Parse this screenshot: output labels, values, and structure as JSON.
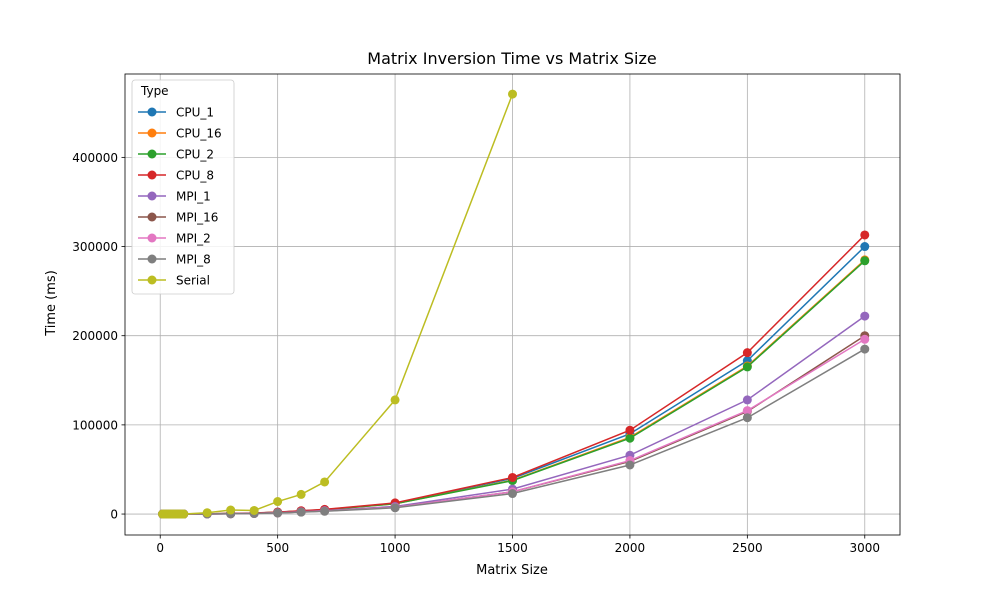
{
  "chart_data": {
    "type": "line",
    "title": "Matrix Inversion Time vs Matrix Size",
    "xlabel": "Matrix Size",
    "ylabel": "Time (ms)",
    "xlim": [
      -150,
      3150
    ],
    "ylim": [
      -23500,
      493500
    ],
    "x_ticks": [
      0,
      500,
      1000,
      1500,
      2000,
      2500,
      3000
    ],
    "y_ticks": [
      0,
      100000,
      200000,
      300000,
      400000
    ],
    "grid": true,
    "legend": {
      "title": "Type",
      "placement": "top-left"
    },
    "series": [
      {
        "name": "CPU_1",
        "color": "#1f77b4",
        "x": [
          10,
          20,
          30,
          40,
          50,
          60,
          70,
          80,
          90,
          100,
          200,
          300,
          400,
          500,
          600,
          700,
          1000,
          1500,
          2000,
          2500,
          3000
        ],
        "y": [
          0,
          0,
          0,
          0,
          0,
          0,
          0,
          0,
          0,
          0,
          200,
          600,
          1000,
          2000,
          3500,
          5000,
          12000,
          40000,
          90000,
          172000,
          300000
        ]
      },
      {
        "name": "CPU_16",
        "color": "#ff7f0e",
        "x": [
          10,
          20,
          30,
          40,
          50,
          60,
          70,
          80,
          90,
          100,
          200,
          300,
          400,
          500,
          600,
          700,
          1000,
          1500,
          2000,
          2500,
          3000
        ],
        "y": [
          0,
          0,
          0,
          0,
          0,
          0,
          0,
          0,
          0,
          0,
          200,
          600,
          1000,
          2000,
          3400,
          4800,
          11500,
          38000,
          86000,
          166000,
          285000
        ]
      },
      {
        "name": "CPU_2",
        "color": "#2ca02c",
        "x": [
          10,
          20,
          30,
          40,
          50,
          60,
          70,
          80,
          90,
          100,
          200,
          300,
          400,
          500,
          600,
          700,
          1000,
          1500,
          2000,
          2500,
          3000
        ],
        "y": [
          0,
          0,
          0,
          0,
          0,
          0,
          0,
          0,
          0,
          0,
          200,
          600,
          1000,
          2000,
          3400,
          4800,
          11500,
          37500,
          85000,
          165000,
          284000
        ]
      },
      {
        "name": "CPU_8",
        "color": "#d62728",
        "x": [
          10,
          20,
          30,
          40,
          50,
          60,
          70,
          80,
          90,
          100,
          200,
          300,
          400,
          500,
          600,
          700,
          1000,
          1500,
          2000,
          2500,
          3000
        ],
        "y": [
          0,
          0,
          0,
          0,
          0,
          0,
          0,
          0,
          0,
          0,
          200,
          700,
          1100,
          2200,
          3700,
          5200,
          12500,
          41000,
          94000,
          181000,
          313000
        ]
      },
      {
        "name": "MPI_1",
        "color": "#9467bd",
        "x": [
          10,
          20,
          30,
          40,
          50,
          60,
          70,
          80,
          90,
          100,
          200,
          300,
          400,
          500,
          600,
          700,
          1000,
          1500,
          2000,
          2500,
          3000
        ],
        "y": [
          0,
          0,
          0,
          0,
          0,
          0,
          0,
          0,
          0,
          0,
          100,
          400,
          800,
          1500,
          2600,
          3800,
          8500,
          28000,
          66000,
          128000,
          222000
        ]
      },
      {
        "name": "MPI_16",
        "color": "#8c564b",
        "x": [
          10,
          20,
          30,
          40,
          50,
          60,
          70,
          80,
          90,
          100,
          200,
          300,
          400,
          500,
          600,
          700,
          1000,
          1500,
          2000,
          2500,
          3000
        ],
        "y": [
          0,
          0,
          0,
          0,
          0,
          0,
          0,
          0,
          0,
          0,
          100,
          300,
          700,
          1300,
          2300,
          3400,
          7500,
          25000,
          59000,
          115000,
          200000
        ]
      },
      {
        "name": "MPI_2",
        "color": "#e377c2",
        "x": [
          10,
          20,
          30,
          40,
          50,
          60,
          70,
          80,
          90,
          100,
          200,
          300,
          400,
          500,
          600,
          700,
          1000,
          1500,
          2000,
          2500,
          3000
        ],
        "y": [
          0,
          0,
          0,
          0,
          0,
          0,
          0,
          0,
          0,
          0,
          100,
          300,
          700,
          1300,
          2300,
          3400,
          7500,
          25000,
          60000,
          116000,
          196000
        ]
      },
      {
        "name": "MPI_8",
        "color": "#7f7f7f",
        "x": [
          10,
          20,
          30,
          40,
          50,
          60,
          70,
          80,
          90,
          100,
          200,
          300,
          400,
          500,
          600,
          700,
          1000,
          1500,
          2000,
          2500,
          3000
        ],
        "y": [
          0,
          0,
          0,
          0,
          0,
          0,
          0,
          0,
          0,
          0,
          100,
          300,
          600,
          1200,
          2100,
          3100,
          7000,
          23000,
          55000,
          108000,
          185000
        ]
      },
      {
        "name": "Serial",
        "color": "#bcbd22",
        "x": [
          10,
          20,
          30,
          40,
          50,
          60,
          70,
          80,
          90,
          100,
          200,
          300,
          400,
          500,
          600,
          700,
          1000,
          1500
        ],
        "y": [
          0,
          0,
          0,
          0,
          0,
          0,
          0,
          0,
          0,
          0,
          1500,
          4500,
          4000,
          14000,
          22000,
          36000,
          128000,
          471000
        ]
      }
    ]
  }
}
